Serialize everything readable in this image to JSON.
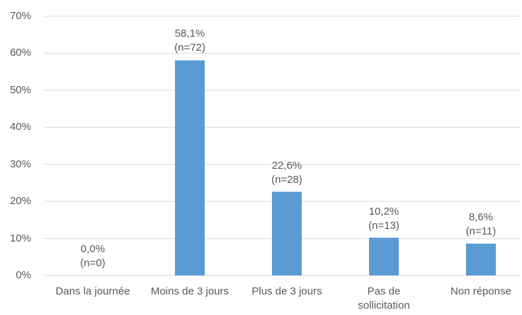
{
  "chart_data": {
    "type": "bar",
    "categories": [
      "Dans la journée",
      "Moins de 3 jours",
      "Plus de 3 jours",
      "Pas de\nsollicitation",
      "Non réponse"
    ],
    "values": [
      0,
      58.1,
      22.6,
      10.2,
      8.6
    ],
    "value_labels": [
      "0,0%\n(n=0)",
      "58,1%\n(n=72)",
      "22,6%\n(n=28)",
      "10,2%\n(n=13)",
      "8,6%\n(n=11)"
    ],
    "color": "#5b9bd5",
    "ylim": [
      0,
      70
    ],
    "yticks": [
      {
        "value": 0,
        "label": "0%"
      },
      {
        "value": 10,
        "label": "10%"
      },
      {
        "value": 20,
        "label": "20%"
      },
      {
        "value": 30,
        "label": "30%"
      },
      {
        "value": 40,
        "label": "40%"
      },
      {
        "value": 50,
        "label": "50%"
      },
      {
        "value": 60,
        "label": "60%"
      },
      {
        "value": 70,
        "label": "70%"
      }
    ],
    "grid": true
  }
}
